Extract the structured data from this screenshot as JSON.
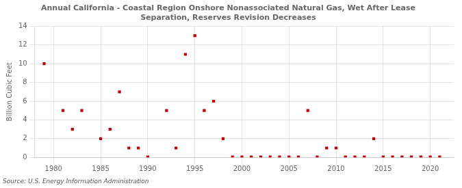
{
  "chart_data": {
    "type": "scatter",
    "title": "Annual California - Coastal Region Onshore Nonassociated Natural Gas, Wet After Lease\nSeparation, Reserves Revision Decreases",
    "ylabel": "Billion Cubic Feet",
    "annotations": [
      "Source: U.S. Energy Information Administration"
    ],
    "x": [
      1979,
      1981,
      1982,
      1983,
      1985,
      1986,
      1987,
      1988,
      1989,
      1990,
      1992,
      1993,
      1994,
      1995,
      1996,
      1997,
      1998,
      1999,
      2000,
      2001,
      2002,
      2003,
      2004,
      2005,
      2006,
      2007,
      2008,
      2009,
      2010,
      2011,
      2012,
      2013,
      2014,
      2015,
      2016,
      2017,
      2018,
      2019,
      2020,
      2021
    ],
    "values": [
      10.0,
      5.0,
      3.0,
      5.0,
      2.0,
      3.0,
      7.0,
      1.0,
      1.0,
      0.05,
      5.0,
      1.0,
      11.0,
      13.0,
      5.0,
      6.0,
      2.0,
      0.05,
      0.05,
      0.05,
      0.05,
      0.05,
      0.05,
      0.05,
      0.05,
      5.0,
      0.05,
      1.0,
      1.0,
      0.05,
      0.05,
      0.05,
      2.0,
      0.05,
      0.05,
      0.05,
      0.05,
      0.05,
      0.05,
      0.05
    ],
    "color": "#cc0000",
    "marker": "square",
    "xlim": [
      1978,
      2022.5
    ],
    "xticks": [
      1980,
      1985,
      1990,
      1995,
      2000,
      2005,
      2010,
      2015,
      2020
    ],
    "ylim": [
      0,
      14
    ],
    "yticks": [
      0,
      2,
      4,
      6,
      8,
      10,
      12,
      14
    ],
    "grid": true
  }
}
